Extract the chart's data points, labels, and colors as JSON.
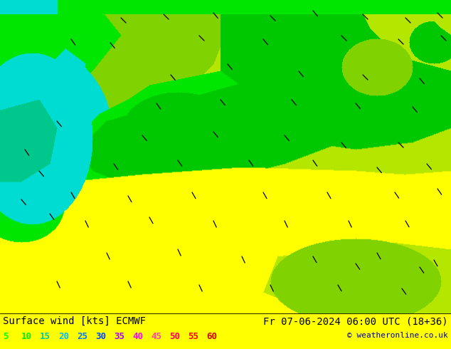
{
  "title_left": "Surface wind [kts] ECMWF",
  "title_right": "Fr 07-06-2024 06:00 UTC (18+36)",
  "copyright": "© weatheronline.co.uk",
  "legend_values": [
    "5",
    "10",
    "15",
    "20",
    "25",
    "30",
    "35",
    "40",
    "45",
    "50",
    "55",
    "60"
  ],
  "legend_colors": [
    "#00ff00",
    "#00ee00",
    "#00ccaa",
    "#00bbff",
    "#0077ff",
    "#0044ff",
    "#aa00ff",
    "#ff00ff",
    "#ff44aa",
    "#ff0066",
    "#ff0000",
    "#cc0000"
  ],
  "bg_color": "#ffff00",
  "figsize": [
    6.34,
    4.9
  ],
  "dpi": 100,
  "title_fontsize": 10,
  "legend_fontsize": 9,
  "text_color": "#000000",
  "copyright_color": "#0000aa",
  "bottom_bar_height": 50,
  "colors": {
    "yellow": [
      255,
      255,
      0
    ],
    "yellow_green": [
      180,
      230,
      0
    ],
    "light_green": [
      128,
      210,
      0
    ],
    "mid_green": [
      0,
      200,
      0
    ],
    "bright_green": [
      0,
      230,
      0
    ],
    "dark_green": [
      0,
      170,
      0
    ],
    "cyan": [
      0,
      210,
      190
    ],
    "light_cyan": [
      0,
      220,
      210
    ],
    "teal_green": [
      0,
      200,
      140
    ]
  }
}
